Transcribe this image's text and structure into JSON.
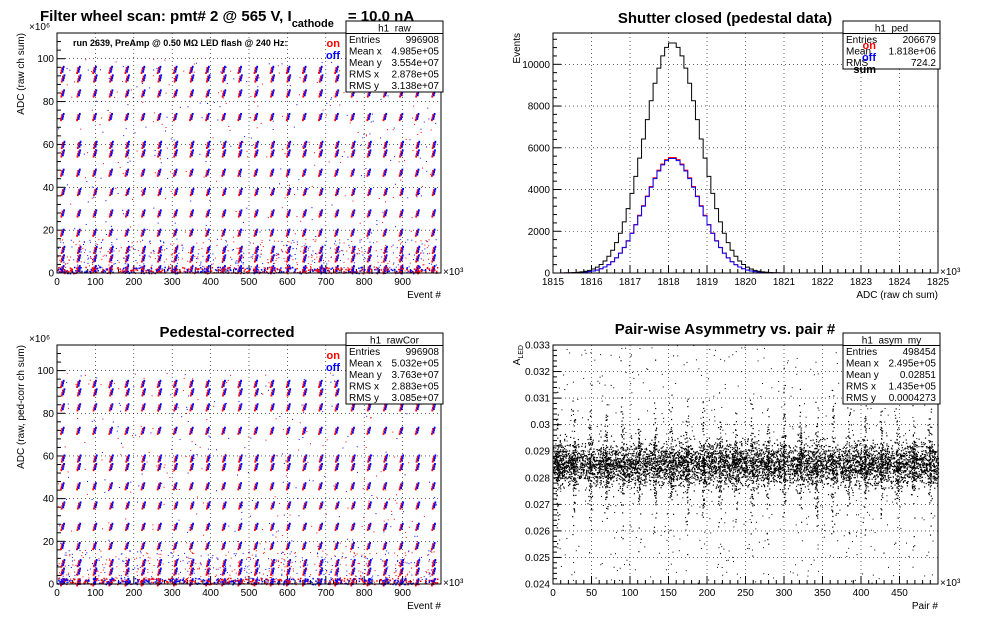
{
  "chart_data": [
    {
      "type": "scatter",
      "title": "Filter wheel scan: pmt#   2 @   565 V, I",
      "title_sub": "cathode",
      "title_tail": "= 10.0 nA",
      "annotation": "run 2639, PreAmp @ 0.50 MΩ   LED flash @  240 Hz:",
      "xlabel": "Event #",
      "ylabel": "ADC (raw ch sum)",
      "x_exponent": "×10³",
      "y_exponent": "×10⁶",
      "xlim": [
        0,
        1000
      ],
      "ylim": [
        0,
        112
      ],
      "xticks": [
        "0",
        "100",
        "200",
        "300",
        "400",
        "500",
        "600",
        "700",
        "800",
        "900"
      ],
      "yticks": [
        "0",
        "20",
        "40",
        "60",
        "80",
        "100"
      ],
      "grid": true,
      "legend": [
        {
          "label": "on",
          "color": "#ff0000"
        },
        {
          "label": "off",
          "color": "#0000ff"
        }
      ],
      "stats": {
        "name": "h1_raw",
        "rows": [
          {
            "k": "Entries",
            "v": "996908"
          },
          {
            "k": "Mean x",
            "v": "4.985e+05"
          },
          {
            "k": "Mean y",
            "v": "3.554e+07"
          },
          {
            "k": "RMS x",
            "v": "2.878e+05"
          },
          {
            "k": "RMS y",
            "v": "3.138e+07"
          }
        ]
      },
      "levels": [
        2,
        7,
        11,
        19,
        28,
        38,
        47,
        56,
        60,
        73,
        84,
        91,
        95
      ],
      "step_period": 42
    },
    {
      "type": "line",
      "title": "Shutter closed (pedestal data)",
      "xlabel": "ADC (raw ch sum)",
      "ylabel": "Events",
      "x_exponent": "×10³",
      "xlim": [
        1815,
        1825
      ],
      "ylim": [
        0,
        11500
      ],
      "xticks": [
        "1815",
        "1816",
        "1817",
        "1818",
        "1819",
        "1820",
        "1821",
        "1822",
        "1823",
        "1824",
        "1825"
      ],
      "yticks": [
        "0",
        "2000",
        "4000",
        "6000",
        "8000",
        "10000"
      ],
      "grid": true,
      "legend": [
        {
          "label": "on",
          "color": "#ff0000"
        },
        {
          "label": "off",
          "color": "#0000ff"
        },
        {
          "label": "sum",
          "color": "#000000"
        }
      ],
      "stats": {
        "name": "h1_ped",
        "rows": [
          {
            "k": "Entries",
            "v": "206679"
          },
          {
            "k": "Mean",
            "v": "1.818e+06"
          },
          {
            "k": "RMS",
            "v": "724.2"
          }
        ]
      },
      "series": [
        {
          "name": "on",
          "color": "#ff0000",
          "mean": 1818.1,
          "sigma": 0.72,
          "peak": 5550
        },
        {
          "name": "off",
          "color": "#0000ff",
          "mean": 1818.1,
          "sigma": 0.72,
          "peak": 5500
        },
        {
          "name": "sum",
          "color": "#000000",
          "mean": 1818.1,
          "sigma": 0.72,
          "peak": 11050
        }
      ]
    },
    {
      "type": "scatter",
      "title": "Pedestal-corrected",
      "xlabel": "Event #",
      "ylabel": "ADC (raw, ped-corr ch sum)",
      "x_exponent": "×10³",
      "y_exponent": "×10⁶",
      "xlim": [
        0,
        1000
      ],
      "ylim": [
        0,
        112
      ],
      "xticks": [
        "0",
        "100",
        "200",
        "300",
        "400",
        "500",
        "600",
        "700",
        "800",
        "900"
      ],
      "yticks": [
        "0",
        "20",
        "40",
        "60",
        "80",
        "100"
      ],
      "grid": true,
      "legend": [
        {
          "label": "on",
          "color": "#ff0000"
        },
        {
          "label": "off",
          "color": "#0000ff"
        }
      ],
      "stats": {
        "name": "h1_rawCor",
        "rows": [
          {
            "k": "Entries",
            "v": "996908"
          },
          {
            "k": "Mean x",
            "v": "5.032e+05"
          },
          {
            "k": "Mean y",
            "v": "3.763e+07"
          },
          {
            "k": "RMS x",
            "v": "2.883e+05"
          },
          {
            "k": "RMS y",
            "v": "3.085e+07"
          }
        ]
      },
      "levels": [
        1,
        6,
        10,
        18,
        27,
        37,
        46,
        55,
        59,
        72,
        83,
        90,
        94
      ],
      "step_period": 42
    },
    {
      "type": "scatter",
      "title": "Pair-wise Asymmetry vs. pair #",
      "xlabel": "Pair #",
      "ylabel": "A_LED",
      "x_exponent": "×10³",
      "xlim": [
        0,
        500
      ],
      "ylim": [
        0.024,
        0.033
      ],
      "xticks": [
        "0",
        "50",
        "100",
        "150",
        "200",
        "250",
        "300",
        "350",
        "400",
        "450"
      ],
      "yticks": [
        "0.024",
        "0.025",
        "0.026",
        "0.027",
        "0.028",
        "0.029",
        "0.03",
        "0.031",
        "0.032",
        "0.033"
      ],
      "grid": true,
      "stats": {
        "name": "h1_asym_my",
        "rows": [
          {
            "k": "Entries",
            "v": "498454"
          },
          {
            "k": "Mean x",
            "v": "2.495e+05"
          },
          {
            "k": "Mean y",
            "v": "0.02851"
          },
          {
            "k": "RMS x",
            "v": "1.435e+05"
          },
          {
            "k": "RMS y",
            "v": "0.0004273"
          }
        ]
      },
      "band_center": 0.02851,
      "band_halfwidth": 0.0007,
      "spike_period": 21
    }
  ]
}
